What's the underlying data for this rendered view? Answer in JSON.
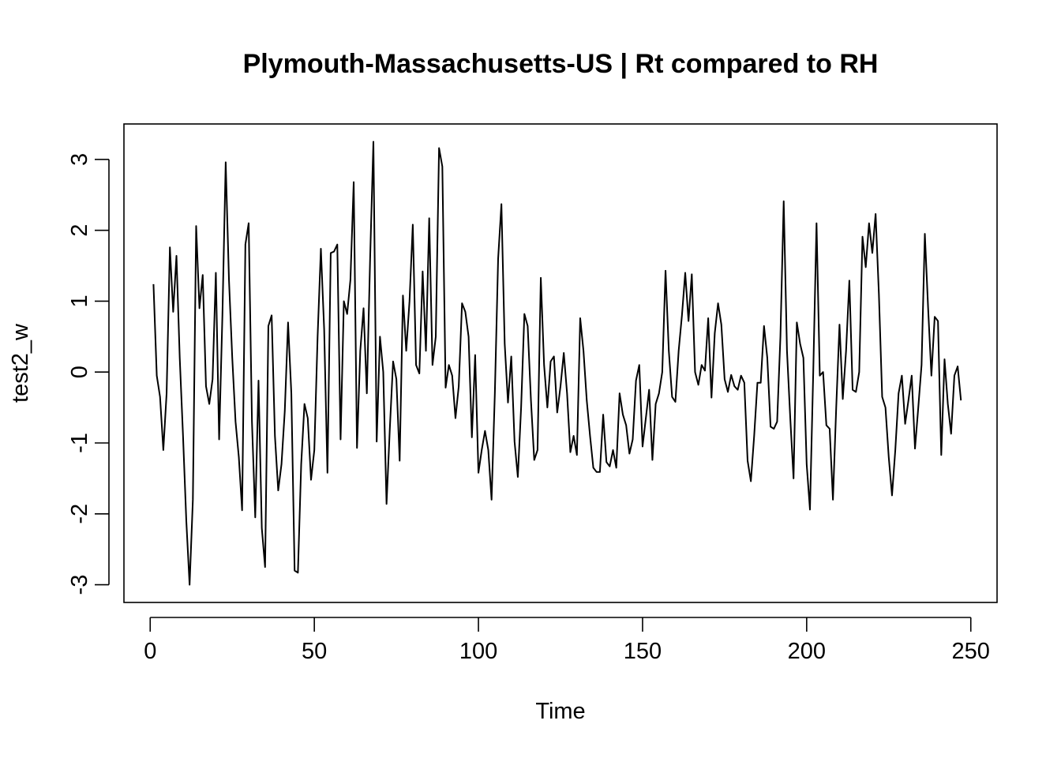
{
  "chart_data": {
    "type": "line",
    "title": "Plymouth-Massachusetts-US | Rt compared to RH",
    "xlabel": "Time",
    "ylabel": "test2_w",
    "xlim": [
      -8,
      258
    ],
    "ylim": [
      -3.25,
      3.5
    ],
    "xticks": [
      0,
      50,
      100,
      150,
      200,
      250
    ],
    "yticks": [
      -3,
      -2,
      -1,
      0,
      1,
      2,
      3
    ],
    "grid": false,
    "legend": "none",
    "line_color": "#000000",
    "x_start": 1,
    "series": [
      {
        "values": [
          1.24,
          -0.05,
          -0.35,
          -1.1,
          -0.3,
          1.76,
          0.85,
          1.64,
          0.2,
          -0.9,
          -2.1,
          -3.0,
          -1.8,
          2.06,
          0.9,
          1.37,
          -0.2,
          -0.45,
          -0.1,
          1.4,
          -0.95,
          0.8,
          2.96,
          1.3,
          0.2,
          -0.7,
          -1.2,
          -1.95,
          1.8,
          2.1,
          -0.7,
          -2.05,
          -0.12,
          -2.2,
          -2.75,
          0.65,
          0.8,
          -0.9,
          -1.67,
          -1.3,
          -0.55,
          0.7,
          -0.3,
          -2.8,
          -2.83,
          -1.3,
          -0.45,
          -0.65,
          -1.52,
          -1.1,
          0.5,
          1.74,
          0.6,
          -1.42,
          1.68,
          1.7,
          1.8,
          -0.95,
          1.0,
          0.82,
          1.3,
          2.68,
          -1.07,
          0.3,
          0.9,
          -0.3,
          1.6,
          3.25,
          -0.98,
          0.5,
          0.0,
          -1.86,
          -0.8,
          0.15,
          -0.1,
          -1.25,
          1.08,
          0.3,
          1.0,
          2.08,
          0.1,
          -0.02,
          1.42,
          0.3,
          2.17,
          0.1,
          0.5,
          3.16,
          2.9,
          -0.22,
          0.1,
          -0.05,
          -0.65,
          -0.2,
          0.97,
          0.85,
          0.5,
          -0.92,
          0.24,
          -1.42,
          -1.1,
          -0.83,
          -1.1,
          -1.8,
          -0.3,
          1.6,
          2.37,
          0.4,
          -0.43,
          0.22,
          -0.98,
          -1.48,
          -0.5,
          0.82,
          0.65,
          -0.4,
          -1.24,
          -1.1,
          1.33,
          0.1,
          -0.5,
          0.15,
          0.22,
          -0.57,
          -0.2,
          0.27,
          -0.3,
          -1.13,
          -0.9,
          -1.17,
          0.76,
          0.3,
          -0.4,
          -0.9,
          -1.35,
          -1.41,
          -1.41,
          -0.6,
          -1.27,
          -1.33,
          -1.1,
          -1.35,
          -0.3,
          -0.6,
          -0.75,
          -1.15,
          -0.95,
          -0.12,
          0.1,
          -1.05,
          -0.65,
          -0.25,
          -1.24,
          -0.45,
          -0.3,
          0.0,
          1.43,
          0.3,
          -0.35,
          -0.42,
          0.3,
          0.8,
          1.4,
          0.72,
          1.38,
          0.0,
          -0.18,
          0.1,
          0.02,
          0.76,
          -0.36,
          0.55,
          0.97,
          0.67,
          -0.1,
          -0.28,
          -0.04,
          -0.2,
          -0.25,
          -0.05,
          -0.15,
          -1.25,
          -1.54,
          -0.9,
          -0.15,
          -0.15,
          0.65,
          0.2,
          -0.77,
          -0.8,
          -0.7,
          0.5,
          2.41,
          0.3,
          -0.65,
          -1.5,
          0.7,
          0.4,
          0.2,
          -1.3,
          -1.94,
          0.0,
          2.1,
          -0.05,
          0.0,
          -0.75,
          -0.8,
          -1.8,
          -0.5,
          0.67,
          -0.38,
          0.3,
          1.29,
          -0.25,
          -0.28,
          0.0,
          1.91,
          1.48,
          2.1,
          1.68,
          2.23,
          1.1,
          -0.35,
          -0.5,
          -1.2,
          -1.74,
          -1.1,
          -0.3,
          -0.05,
          -0.73,
          -0.4,
          -0.05,
          -1.08,
          -0.5,
          0.1,
          1.95,
          0.9,
          -0.05,
          0.78,
          0.72,
          -1.17,
          0.18,
          -0.45,
          -0.87,
          -0.05,
          0.08,
          -0.4
        ]
      }
    ]
  }
}
